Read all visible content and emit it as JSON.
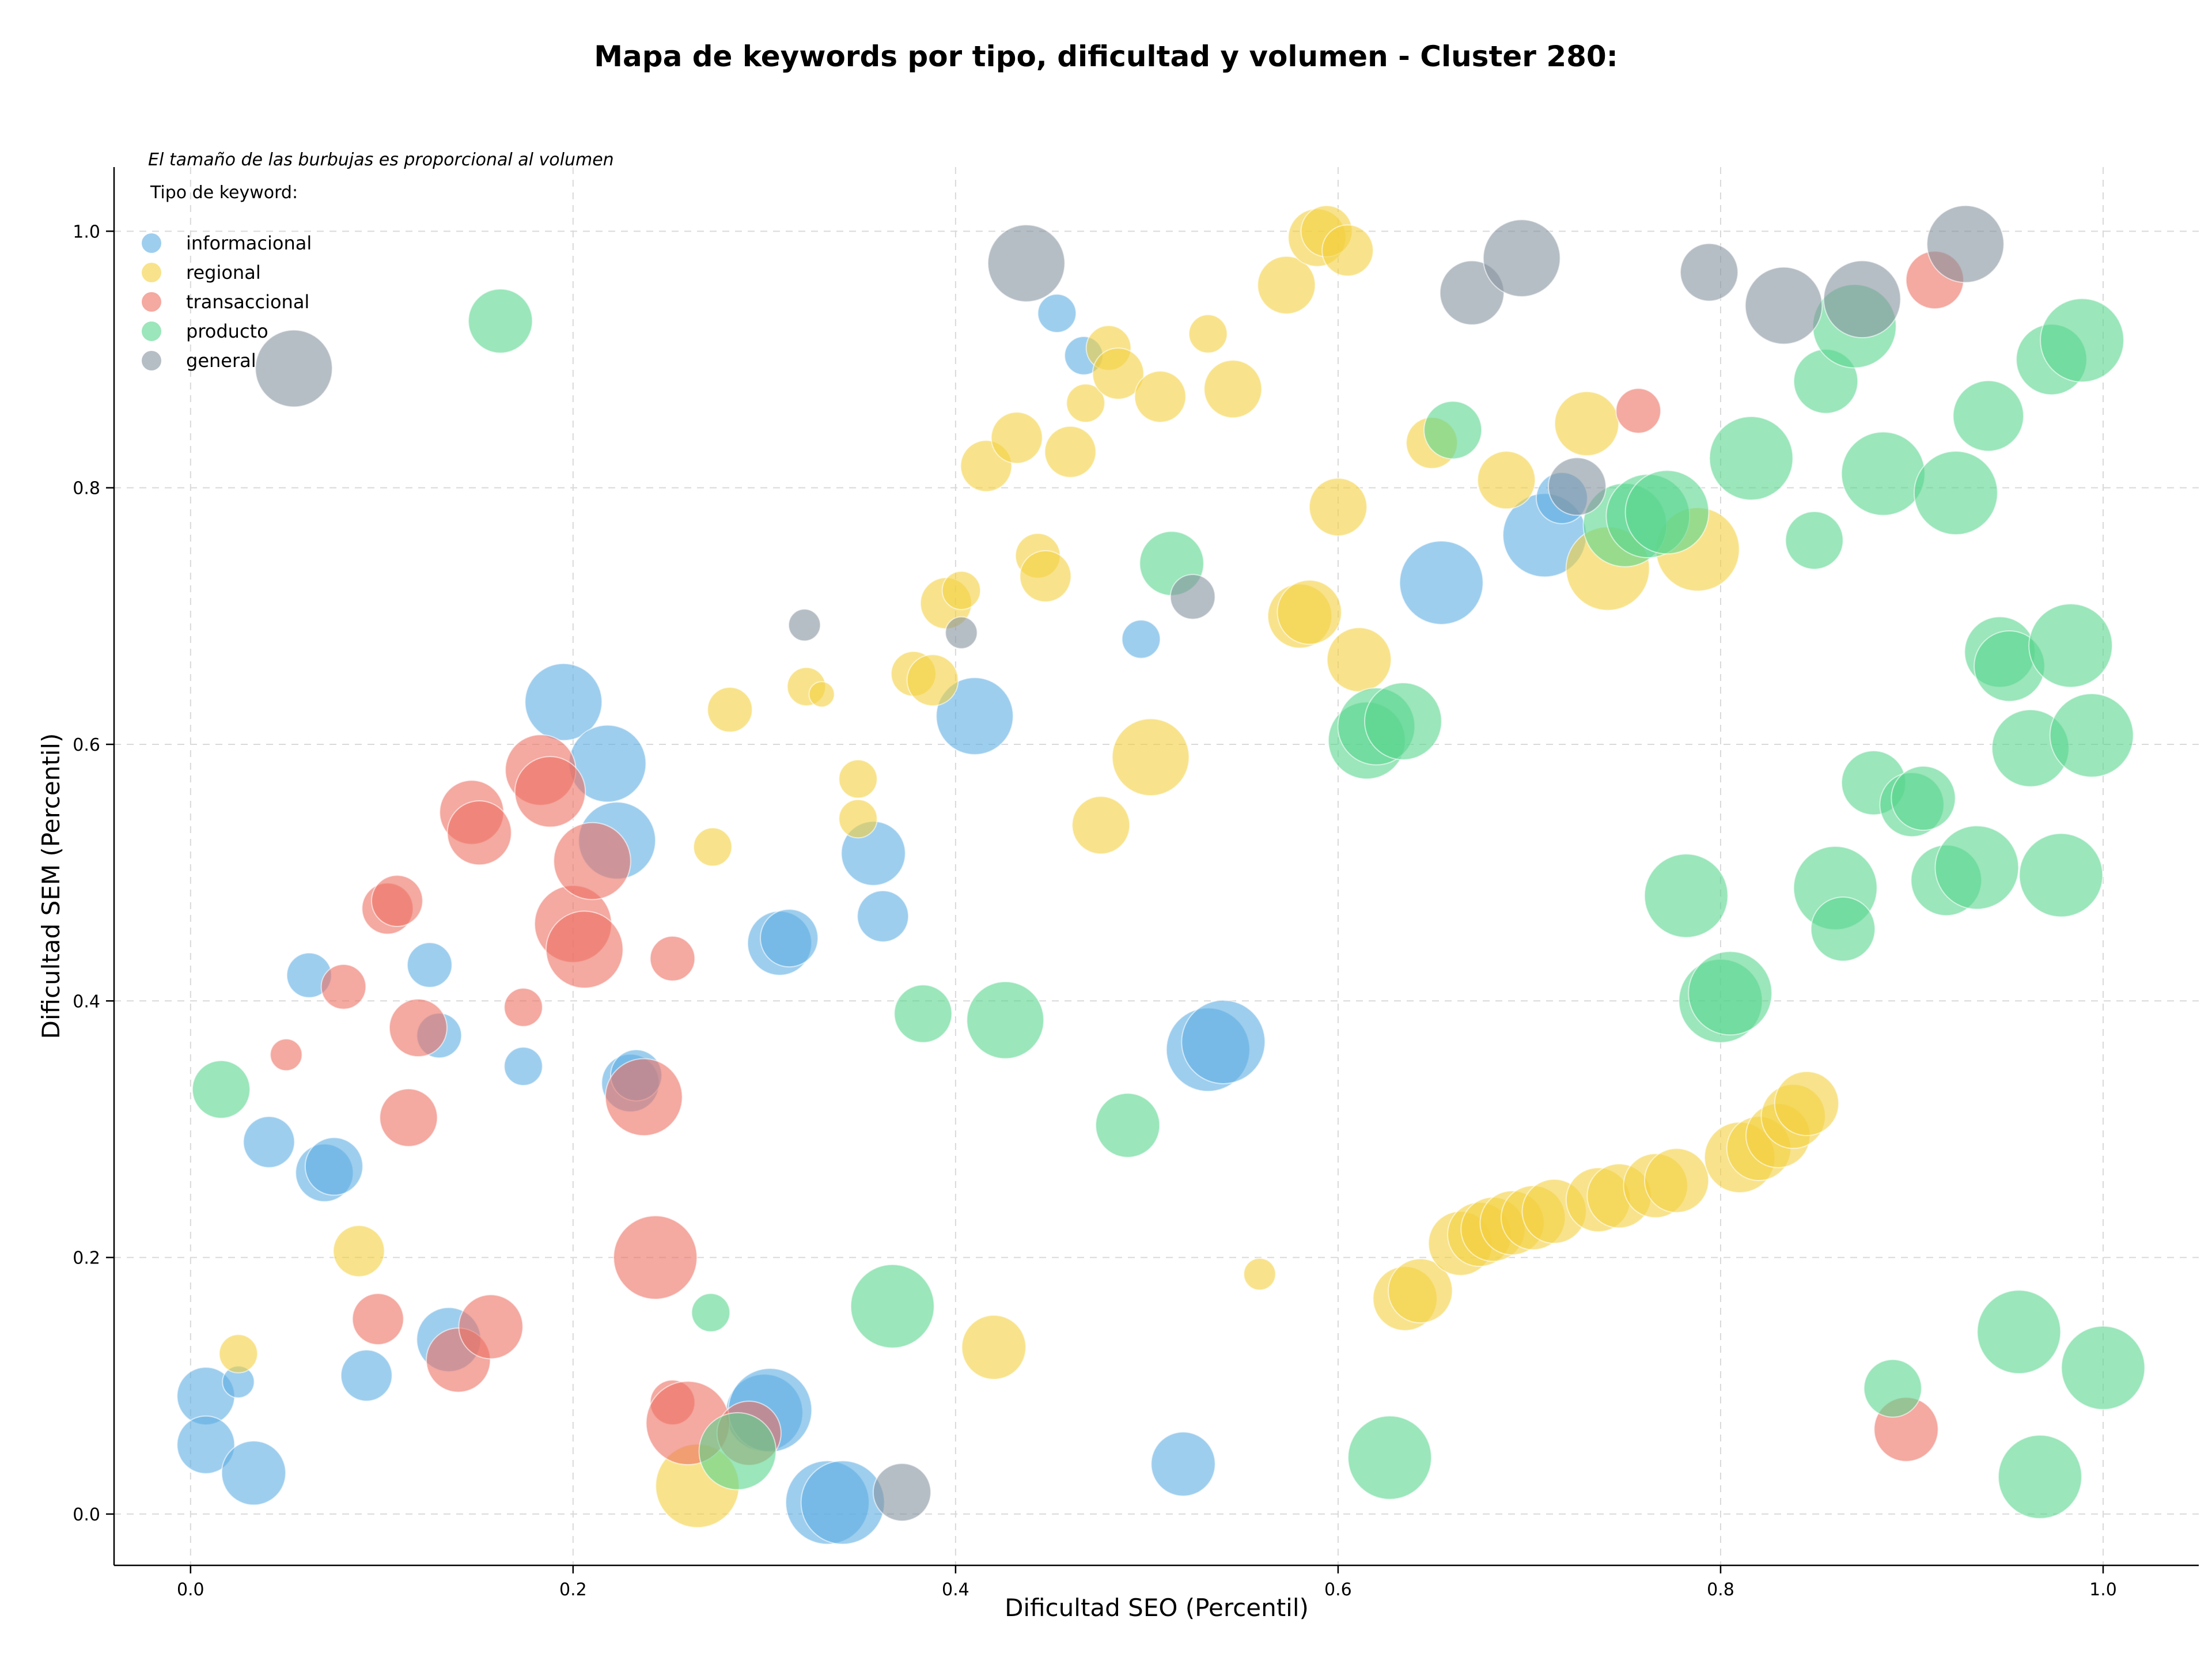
{
  "chart_data": {
    "type": "scatter",
    "title": "Mapa de keywords por tipo, dificultad y volumen - Cluster 280:",
    "xlabel": "Dificultad SEO (Percentil)",
    "ylabel": "Dificultad SEM (Percentil)",
    "xlim": [
      -0.04,
      1.05
    ],
    "ylim": [
      -0.04,
      1.05
    ],
    "xticks": [
      0.0,
      0.2,
      0.4,
      0.6,
      0.8,
      1.0
    ],
    "yticks": [
      0.0,
      0.2,
      0.4,
      0.6,
      0.8,
      1.0
    ],
    "xtick_labels": [
      "0.0",
      "0.2",
      "0.4",
      "0.6",
      "0.8",
      "1.0"
    ],
    "ytick_labels": [
      "0.0",
      "0.2",
      "0.4",
      "0.6",
      "0.8",
      "1.0"
    ],
    "grid": true,
    "note": "El tamaño de las burbujas es proporcional al volumen",
    "legend_title": "Tipo de keyword:",
    "legend_position": "top-left",
    "series": [
      {
        "name": "informacional",
        "color": "#5DADE2",
        "points": [
          [
            0.008,
            0.092,
            9
          ],
          [
            0.008,
            0.054,
            9
          ],
          [
            0.025,
            0.103,
            5
          ],
          [
            0.033,
            0.032,
            10
          ],
          [
            0.041,
            0.29,
            8
          ],
          [
            0.07,
            0.266,
            9
          ],
          [
            0.075,
            0.271,
            9
          ],
          [
            0.062,
            0.42,
            7
          ],
          [
            0.092,
            0.108,
            8
          ],
          [
            0.125,
            0.428,
            7
          ],
          [
            0.13,
            0.373,
            7
          ],
          [
            0.174,
            0.349,
            6
          ],
          [
            0.135,
            0.136,
            10
          ],
          [
            0.195,
            0.633,
            12
          ],
          [
            0.218,
            0.585,
            12
          ],
          [
            0.223,
            0.525,
            12
          ],
          [
            0.23,
            0.336,
            9
          ],
          [
            0.233,
            0.342,
            8
          ],
          [
            0.308,
            0.445,
            10
          ],
          [
            0.313,
            0.449,
            9
          ],
          [
            0.357,
            0.515,
            10
          ],
          [
            0.362,
            0.466,
            8
          ],
          [
            0.3,
            0.079,
            12
          ],
          [
            0.303,
            0.081,
            13
          ],
          [
            0.333,
            0.009,
            13
          ],
          [
            0.341,
            0.009,
            13
          ],
          [
            0.41,
            0.622,
            12
          ],
          [
            0.453,
            0.936,
            6
          ],
          [
            0.467,
            0.903,
            6
          ],
          [
            0.497,
            0.682,
            6
          ],
          [
            0.519,
            0.039,
            10
          ],
          [
            0.532,
            0.362,
            13
          ],
          [
            0.54,
            0.368,
            13
          ],
          [
            0.654,
            0.726,
            13
          ],
          [
            0.708,
            0.763,
            13
          ],
          [
            0.717,
            0.792,
            8
          ]
        ]
      },
      {
        "name": "regional",
        "color": "#F4D03F",
        "points": [
          [
            0.025,
            0.125,
            6
          ],
          [
            0.088,
            0.205,
            8
          ],
          [
            0.265,
            0.022,
            13
          ],
          [
            0.273,
            0.52,
            6
          ],
          [
            0.282,
            0.627,
            7
          ],
          [
            0.322,
            0.645,
            6
          ],
          [
            0.33,
            0.639,
            4
          ],
          [
            0.349,
            0.573,
            6
          ],
          [
            0.349,
            0.542,
            6
          ],
          [
            0.378,
            0.655,
            7
          ],
          [
            0.388,
            0.65,
            8
          ],
          [
            0.395,
            0.71,
            8
          ],
          [
            0.403,
            0.72,
            6
          ],
          [
            0.416,
            0.817,
            8
          ],
          [
            0.42,
            0.13,
            10
          ],
          [
            0.432,
            0.839,
            8
          ],
          [
            0.443,
            0.747,
            7
          ],
          [
            0.447,
            0.731,
            8
          ],
          [
            0.46,
            0.828,
            8
          ],
          [
            0.468,
            0.866,
            6
          ],
          [
            0.476,
            0.537,
            9
          ],
          [
            0.48,
            0.909,
            7
          ],
          [
            0.485,
            0.889,
            8
          ],
          [
            0.502,
            0.59,
            12
          ],
          [
            0.507,
            0.871,
            8
          ],
          [
            0.532,
            0.92,
            6
          ],
          [
            0.545,
            0.877,
            9
          ],
          [
            0.559,
            0.187,
            5
          ],
          [
            0.573,
            0.958,
            9
          ],
          [
            0.589,
            0.995,
            9
          ],
          [
            0.594,
            1.0,
            8
          ],
          [
            0.605,
            0.985,
            8
          ],
          [
            0.58,
            0.7,
            10
          ],
          [
            0.585,
            0.703,
            10
          ],
          [
            0.6,
            0.785,
            9
          ],
          [
            0.611,
            0.666,
            10
          ],
          [
            0.635,
            0.168,
            10
          ],
          [
            0.643,
            0.174,
            10
          ],
          [
            0.649,
            0.835,
            8
          ],
          [
            0.664,
            0.211,
            10
          ],
          [
            0.674,
            0.218,
            10
          ],
          [
            0.681,
            0.222,
            10
          ],
          [
            0.688,
            0.806,
            9
          ],
          [
            0.691,
            0.227,
            10
          ],
          [
            0.702,
            0.231,
            10
          ],
          [
            0.713,
            0.236,
            10
          ],
          [
            0.73,
            0.85,
            10
          ],
          [
            0.736,
            0.245,
            10
          ],
          [
            0.741,
            0.737,
            13
          ],
          [
            0.747,
            0.248,
            10
          ],
          [
            0.766,
            0.256,
            10
          ],
          [
            0.777,
            0.26,
            10
          ],
          [
            0.788,
            0.752,
            13
          ],
          [
            0.81,
            0.278,
            11
          ],
          [
            0.82,
            0.285,
            10
          ],
          [
            0.83,
            0.295,
            10
          ],
          [
            0.838,
            0.31,
            10
          ],
          [
            0.845,
            0.32,
            10
          ]
        ]
      },
      {
        "name": "transaccional",
        "color": "#EC7063",
        "points": [
          [
            0.05,
            0.358,
            5
          ],
          [
            0.08,
            0.411,
            7
          ],
          [
            0.098,
            0.152,
            8
          ],
          [
            0.103,
            0.472,
            8
          ],
          [
            0.108,
            0.478,
            8
          ],
          [
            0.114,
            0.309,
            9
          ],
          [
            0.119,
            0.379,
            9
          ],
          [
            0.14,
            0.12,
            10
          ],
          [
            0.147,
            0.547,
            10
          ],
          [
            0.151,
            0.531,
            10
          ],
          [
            0.157,
            0.146,
            10
          ],
          [
            0.174,
            0.395,
            6
          ],
          [
            0.183,
            0.58,
            11
          ],
          [
            0.188,
            0.563,
            11
          ],
          [
            0.2,
            0.46,
            12
          ],
          [
            0.206,
            0.44,
            12
          ],
          [
            0.21,
            0.509,
            12
          ],
          [
            0.237,
            0.325,
            12
          ],
          [
            0.243,
            0.2,
            13
          ],
          [
            0.252,
            0.433,
            7
          ],
          [
            0.252,
            0.087,
            7
          ],
          [
            0.26,
            0.071,
            13
          ],
          [
            0.292,
            0.063,
            10
          ],
          [
            0.757,
            0.86,
            7
          ],
          [
            0.912,
            0.962,
            9
          ],
          [
            0.897,
            0.066,
            10
          ]
        ]
      },
      {
        "name": "producto",
        "color": "#58D68D",
        "points": [
          [
            0.016,
            0.331,
            9
          ],
          [
            0.162,
            0.93,
            10
          ],
          [
            0.272,
            0.157,
            6
          ],
          [
            0.286,
            0.049,
            12
          ],
          [
            0.367,
            0.162,
            13
          ],
          [
            0.383,
            0.39,
            9
          ],
          [
            0.426,
            0.385,
            12
          ],
          [
            0.49,
            0.303,
            10
          ],
          [
            0.513,
            0.741,
            10
          ],
          [
            0.615,
            0.603,
            12
          ],
          [
            0.62,
            0.614,
            12
          ],
          [
            0.634,
            0.618,
            12
          ],
          [
            0.627,
            0.044,
            13
          ],
          [
            0.66,
            0.845,
            9
          ],
          [
            0.75,
            0.771,
            13
          ],
          [
            0.762,
            0.778,
            13
          ],
          [
            0.772,
            0.781,
            13
          ],
          [
            0.782,
            0.482,
            13
          ],
          [
            0.8,
            0.4,
            13
          ],
          [
            0.805,
            0.406,
            13
          ],
          [
            0.816,
            0.823,
            13
          ],
          [
            0.849,
            0.759,
            9
          ],
          [
            0.855,
            0.883,
            10
          ],
          [
            0.86,
            0.488,
            13
          ],
          [
            0.864,
            0.456,
            10
          ],
          [
            0.87,
            0.926,
            13
          ],
          [
            0.88,
            0.57,
            10
          ],
          [
            0.885,
            0.811,
            13
          ],
          [
            0.89,
            0.098,
            9
          ],
          [
            0.9,
            0.553,
            10
          ],
          [
            0.906,
            0.558,
            10
          ],
          [
            0.918,
            0.494,
            11
          ],
          [
            0.923,
            0.796,
            13
          ],
          [
            0.934,
            0.504,
            13
          ],
          [
            0.94,
            0.856,
            11
          ],
          [
            0.946,
            0.672,
            11
          ],
          [
            0.951,
            0.661,
            11
          ],
          [
            0.956,
            0.142,
            13
          ],
          [
            0.962,
            0.597,
            12
          ],
          [
            0.967,
            0.029,
            13
          ],
          [
            0.973,
            0.9,
            11
          ],
          [
            0.978,
            0.498,
            13
          ],
          [
            0.983,
            0.677,
            13
          ],
          [
            0.989,
            0.915,
            13
          ],
          [
            0.994,
            0.607,
            13
          ],
          [
            1.0,
            0.114,
            13
          ]
        ]
      },
      {
        "name": "general",
        "color": "#85929E",
        "points": [
          [
            0.054,
            0.893,
            12
          ],
          [
            0.321,
            0.693,
            5
          ],
          [
            0.372,
            0.017,
            9
          ],
          [
            0.403,
            0.687,
            5
          ],
          [
            0.437,
            0.975,
            12
          ],
          [
            0.524,
            0.715,
            7
          ],
          [
            0.67,
            0.952,
            10
          ],
          [
            0.696,
            0.979,
            12
          ],
          [
            0.725,
            0.801,
            9
          ],
          [
            0.794,
            0.968,
            9
          ],
          [
            0.833,
            0.942,
            12
          ],
          [
            0.874,
            0.947,
            12
          ],
          [
            0.928,
            0.99,
            12
          ]
        ]
      }
    ]
  }
}
